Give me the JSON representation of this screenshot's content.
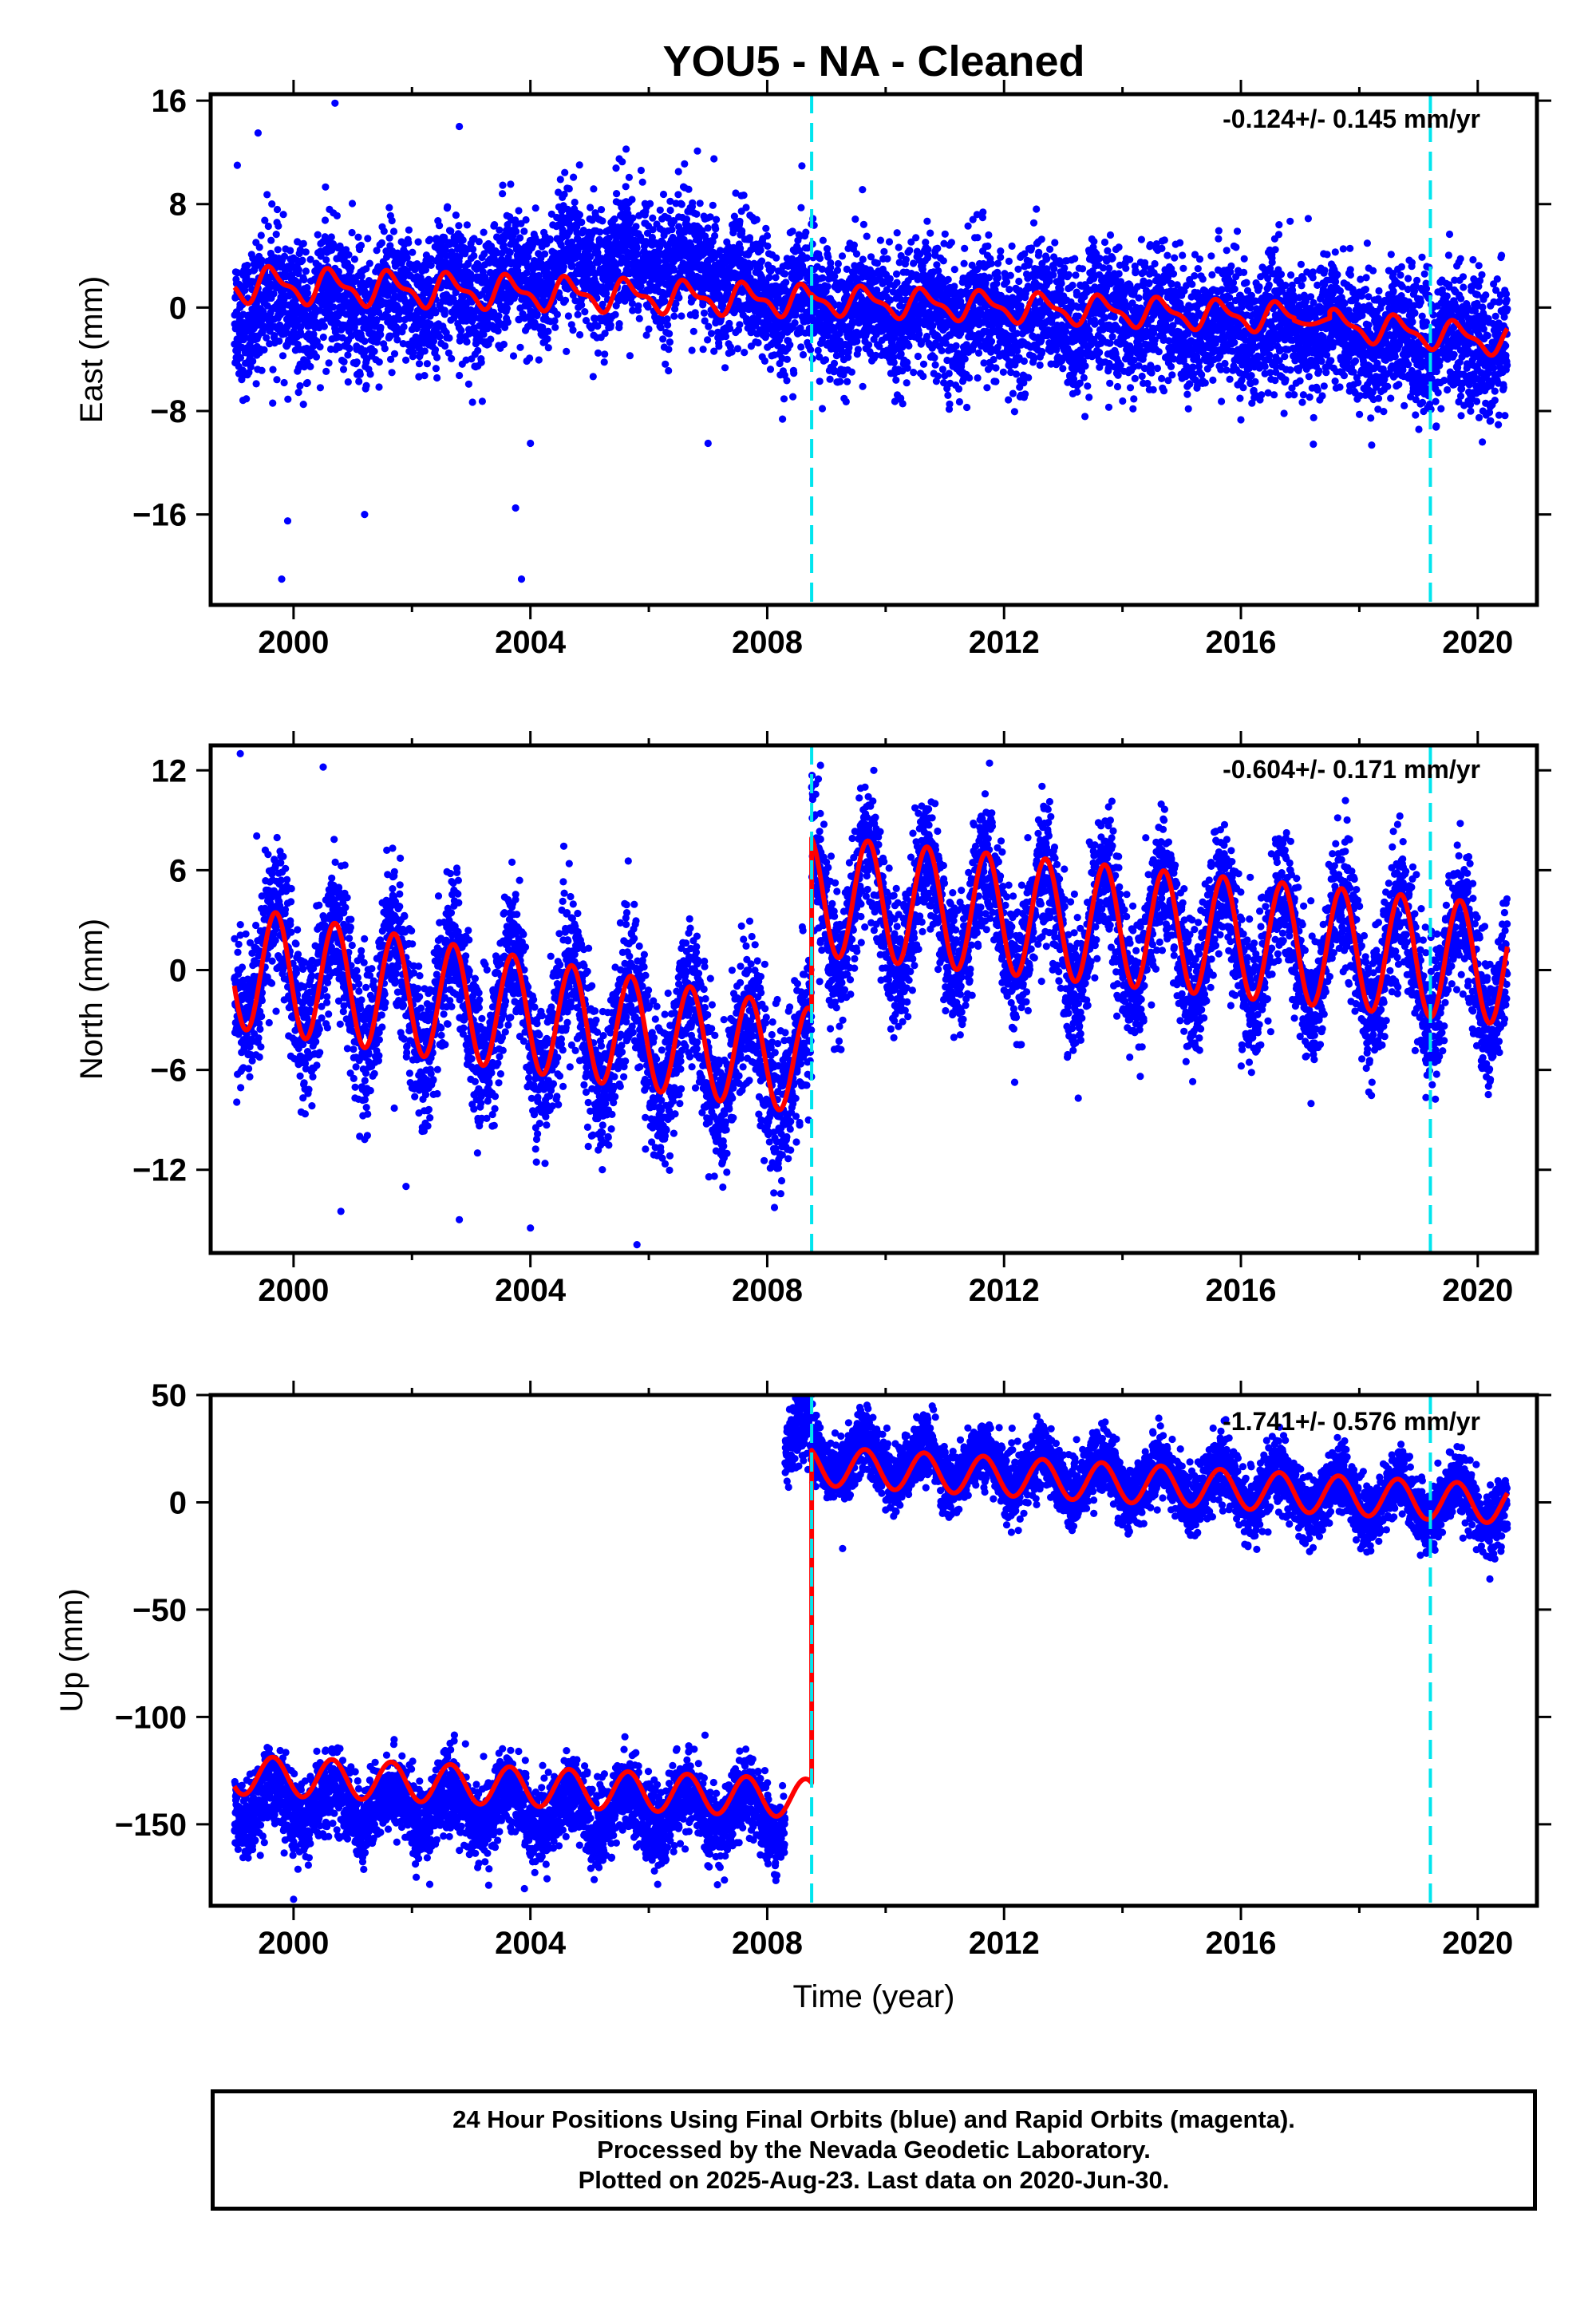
{
  "title": "YOU5  - NA - Cleaned",
  "colors": {
    "data": "#0000ff",
    "model": "#ff0000",
    "breaks": "#00e5ee",
    "frame": "#000000"
  },
  "xlabel": "Time (year)",
  "footer": {
    "line1": "24 Hour Positions Using Final Orbits (blue) and Rapid Orbits (magenta).",
    "line2": "Processed by the Nevada Geodetic Laboratory.",
    "line3": "Plotted on 2025-Aug-23. Last data on 2020-Jun-30."
  },
  "chart_data": [
    {
      "type": "scatter",
      "title": "",
      "ylabel": "East (mm)",
      "rate_text": "-0.124+/- 0.145 mm/yr",
      "xlim": [
        1998.6,
        2021.0
      ],
      "ylim": [
        -23,
        16.5
      ],
      "xticks": [
        2000,
        2004,
        2008,
        2012,
        2016,
        2020
      ],
      "xticks_minor": [
        2002,
        2006,
        2010,
        2014,
        2018
      ],
      "yticks": [
        16,
        8,
        0,
        -8,
        -16
      ],
      "yticks_labels": [
        "16",
        "8",
        "0",
        "−8",
        "−16"
      ],
      "data_start": 1999.0,
      "data_end": 2020.5,
      "break_epochs": [
        2008.75,
        2019.2
      ],
      "series": [
        {
          "role": "observations",
          "segments": [
            {
              "x": [
                1999.0,
                2002.0,
                2004.0,
                2005.5,
                2007.0,
                2008.0,
                2010.0,
                2012.0,
                2014.0,
                2016.0,
                2018.0,
                2020.5
              ],
              "y": [
                0.0,
                0.5,
                2.0,
                4.0,
                3.0,
                0.5,
                -0.5,
                -0.5,
                -0.8,
                -1.5,
                -2.0,
                -3.0
              ],
              "spread": 2.5
            }
          ],
          "outliers": [
            [
              1999.05,
              11
            ],
            [
              1999.4,
              13.5
            ],
            [
              1999.8,
              -21
            ],
            [
              2000.7,
              15.8
            ],
            [
              2001.2,
              -16
            ],
            [
              2002.8,
              14
            ],
            [
              2003.75,
              -15.5
            ],
            [
              2003.85,
              -21
            ],
            [
              2005.5,
              11.5
            ],
            [
              2007.1,
              11.5
            ],
            [
              2007.0,
              -10.5
            ],
            [
              2004.0,
              -10.5
            ],
            [
              1999.9,
              -16.5
            ]
          ]
        },
        {
          "role": "model",
          "segments": [
            {
              "x": [
                1999.0,
                2008.75
              ],
              "y": [
                1.8,
                0.5
              ],
              "amplitude": 1.2,
              "amp_end": 1.0,
              "harmonic2": 0.5,
              "phase": 0.4
            },
            {
              "x": [
                2008.75,
                2016.9
              ],
              "y": [
                0.6,
                -0.8
              ],
              "amplitude": 1.0,
              "amp_end": 1.0,
              "harmonic2": 0.4,
              "phase": 0.4
            },
            {
              "x": [
                2016.9,
                2017.5
              ],
              "y": [
                -1.0,
                -1.0
              ],
              "amplitude": 0.3,
              "amp_end": 0.3,
              "harmonic2": 0.0,
              "phase": 0.4
            },
            {
              "x": [
                2017.5,
                2020.5
              ],
              "y": [
                -1.3,
                -2.6
              ],
              "amplitude": 1.0,
              "amp_end": 1.0,
              "harmonic2": 0.4,
              "phase": 0.4
            }
          ]
        }
      ]
    },
    {
      "type": "scatter",
      "title": "",
      "ylabel": "North (mm)",
      "rate_text": "-0.604+/- 0.171 mm/yr",
      "xlim": [
        1998.6,
        2021.0
      ],
      "ylim": [
        -17,
        13.5
      ],
      "xticks": [
        2000,
        2004,
        2008,
        2012,
        2016,
        2020
      ],
      "xticks_minor": [
        2002,
        2006,
        2010,
        2014,
        2018
      ],
      "yticks": [
        12,
        6,
        0,
        -6,
        -12
      ],
      "yticks_labels": [
        "12",
        "6",
        "0",
        "−6",
        "−12"
      ],
      "data_start": 1999.0,
      "data_end": 2020.5,
      "break_epochs": [
        2008.75,
        2019.2
      ],
      "series": [
        {
          "role": "observations",
          "segments": [
            {
              "x": [
                1999.0,
                2008.75
              ],
              "y": [
                0.5,
                -6.0
              ],
              "spread": 2.2
            },
            {
              "x": [
                2008.75,
                2020.5
              ],
              "y": [
                4.0,
                0.0
              ],
              "spread": 2.0
            }
          ],
          "outliers": [
            [
              1999.1,
              13
            ],
            [
              2000.5,
              12.2
            ],
            [
              2000.8,
              -14.5
            ],
            [
              2002.8,
              -15
            ],
            [
              2004.0,
              -15.5
            ],
            [
              2005.8,
              -16.5
            ],
            [
              2001.9,
              -13
            ],
            [
              2008.9,
              12.3
            ],
            [
              2009.8,
              12
            ]
          ]
        },
        {
          "role": "model",
          "segments": [
            {
              "x": [
                1999.0,
                2008.75
              ],
              "y": [
                0.2,
                -5.5
              ],
              "amplitude": 3.7,
              "amp_end": 3.2,
              "harmonic2": 0.0,
              "phase": 0.45
            },
            {
              "x": [
                2008.75,
                2020.5
              ],
              "y": [
                4.5,
                0.3
              ],
              "amplitude": 3.6,
              "amp_end": 3.6,
              "harmonic2": 0.0,
              "phase": 0.45
            }
          ]
        }
      ]
    },
    {
      "type": "scatter",
      "title": "",
      "ylabel": "Up (mm)",
      "rate_text": "-1.741+/- 0.576 mm/yr",
      "xlim": [
        1998.6,
        2021.0
      ],
      "ylim": [
        -188,
        50
      ],
      "xticks": [
        2000,
        2004,
        2008,
        2012,
        2016,
        2020
      ],
      "xticks_minor": [
        2002,
        2006,
        2010,
        2014,
        2018
      ],
      "yticks": [
        50,
        0,
        -50,
        -100,
        -150
      ],
      "yticks_labels": [
        "50",
        "0",
        "−50",
        "−100",
        "−150"
      ],
      "data_start": 1999.0,
      "data_end": 2020.5,
      "break_epochs": [
        2008.75,
        2019.2
      ],
      "series": [
        {
          "role": "observations",
          "segments": [
            {
              "x": [
                1999.0,
                2008.3
              ],
              "y": [
                -140.0,
                -145.0
              ],
              "spread": 9.0
            },
            {
              "x": [
                2008.3,
                2008.75
              ],
              "y": [
                30.0,
                28.0
              ],
              "spread": 8.0
            },
            {
              "x": [
                2008.75,
                2020.5
              ],
              "y": [
                22.0,
                -3.0
              ],
              "spread": 7.5
            }
          ],
          "outliers": [
            [
              2000.0,
              -185
            ],
            [
              2002.3,
              -178
            ],
            [
              2003.9,
              -180
            ]
          ]
        },
        {
          "role": "model",
          "segments": [
            {
              "x": [
                1999.0,
                2008.75
              ],
              "y": [
                -127.0,
                -138.0
              ],
              "amplitude": 9.0,
              "amp_end": 9.0,
              "harmonic2": 0.0,
              "phase": 0.4
            },
            {
              "x": [
                2008.75,
                2020.5
              ],
              "y": [
                17.0,
                -1.0
              ],
              "amplitude": 9.0,
              "amp_end": 9.0,
              "harmonic2": 0.0,
              "phase": 0.4
            }
          ]
        }
      ]
    }
  ]
}
